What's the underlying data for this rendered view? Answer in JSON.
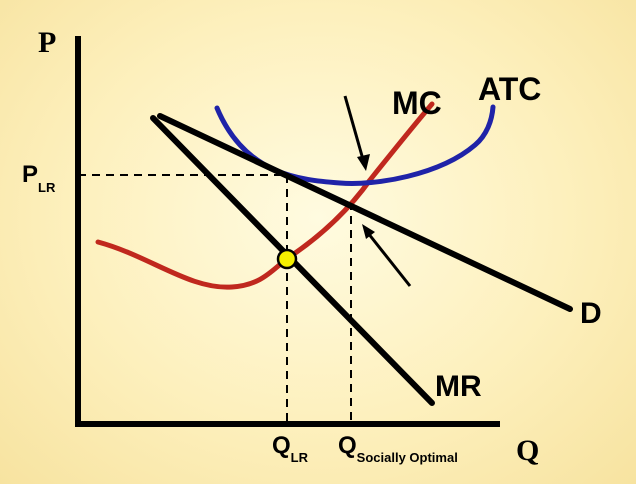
{
  "axes": {
    "y_label": "P",
    "x_label": "Q"
  },
  "curves": {
    "mc": "MC",
    "atc": "ATC",
    "demand": "D",
    "mr": "MR"
  },
  "markers": {
    "price": {
      "main": "P",
      "sub": "LR"
    },
    "q_lr": {
      "main": "Q",
      "sub": "LR"
    },
    "q_social": {
      "main": "Q",
      "sub": "Socially Optimal"
    }
  },
  "colors": {
    "mc_curve": "#c0281e",
    "atc_curve": "#1f23a8",
    "lines": "#000000",
    "point_fill": "#f5f000"
  }
}
